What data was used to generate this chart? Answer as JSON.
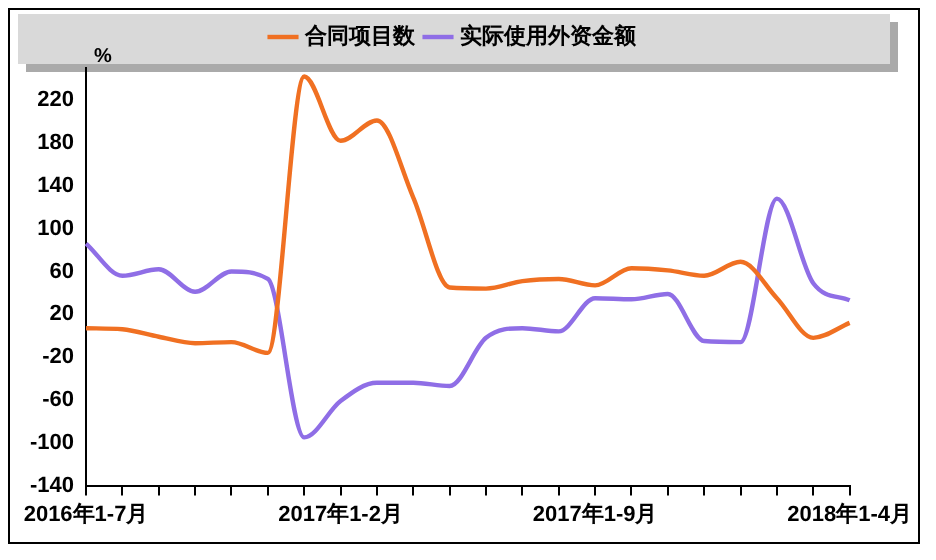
{
  "chart_data": {
    "type": "line",
    "ylabel": "%",
    "categories": [
      "2016年1-7月",
      null,
      null,
      null,
      null,
      null,
      null,
      "2017年1-2月",
      null,
      null,
      null,
      null,
      null,
      null,
      "2017年1-9月",
      null,
      null,
      null,
      null,
      null,
      null,
      "2018年1-4月"
    ],
    "series": [
      {
        "name": "合同项目数",
        "color": "#f07022",
        "values": [
          7,
          6,
          -1,
          -7,
          -6,
          -16,
          242,
          182,
          201,
          129,
          45,
          44,
          51,
          53,
          47,
          63,
          61,
          56,
          69,
          35,
          -2,
          12
        ]
      },
      {
        "name": "实际使用外资金额",
        "color": "#8f6ee6",
        "values": [
          86,
          56,
          62,
          41,
          60,
          53,
          -95,
          -61,
          -44,
          -44,
          -47,
          -2,
          7,
          4,
          35,
          34,
          39,
          -5,
          -6,
          128,
          49,
          33
        ]
      }
    ],
    "ylim": [
      -140,
      250
    ],
    "yticks": [
      -140,
      -100,
      -60,
      -20,
      20,
      60,
      100,
      140,
      180,
      220
    ],
    "grid": false,
    "legend": "top",
    "marker": "none",
    "line_style": "solid"
  }
}
